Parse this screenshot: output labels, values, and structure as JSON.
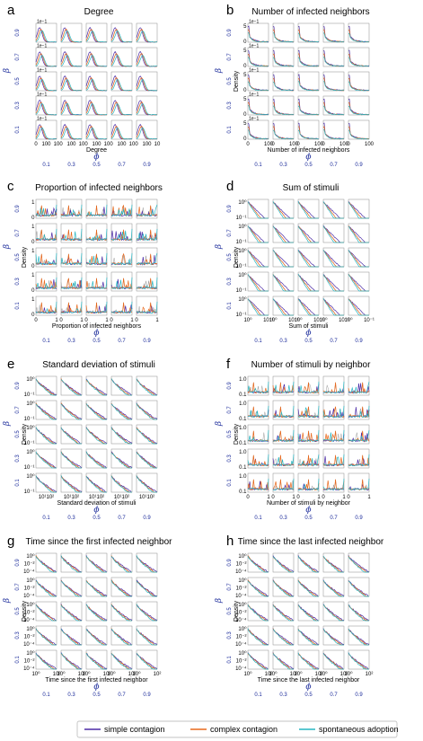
{
  "colors": {
    "simple": "#4b2aa6",
    "complex": "#e8681c",
    "spontaneous": "#27b5c2",
    "grey": "#9a9a9a",
    "param": "#1a2a9a"
  },
  "symbols": {
    "beta": "β",
    "phi": "ϕ"
  },
  "row_params": [
    "0.9",
    "0.7",
    "0.5",
    "0.3",
    "0.1"
  ],
  "col_params": [
    "0.1",
    "0.3",
    "0.5",
    "0.7",
    "0.9"
  ],
  "legend": {
    "items": [
      {
        "label": "simple contagion",
        "color": "#4b2aa6"
      },
      {
        "label": "complex contagion",
        "color": "#e8681c"
      },
      {
        "label": "spontaneous adoption",
        "color": "#27b5c2"
      }
    ]
  },
  "chart_data": [
    {
      "letter": "a",
      "title": "Degree",
      "type": "line",
      "shape": "hump",
      "xlabel": "Degree",
      "ylabel": "",
      "xticks": [
        "0",
        "100",
        "10"
      ],
      "yticks": [],
      "sci": "1e−1"
    },
    {
      "letter": "b",
      "title": "Number of infected neighbors",
      "type": "line",
      "shape": "spike",
      "xlabel": "Number of infected neighbors",
      "ylabel": "Density",
      "xticks": [
        "0",
        "100"
      ],
      "yticks": [
        "5",
        "0"
      ],
      "sci": "1e−1"
    },
    {
      "letter": "c",
      "title": "Proportion of infected neighbors",
      "type": "line",
      "shape": "noisy",
      "xlabel": "Proportion of infected neighbors",
      "ylabel": "Density",
      "xticks": [
        "0",
        "1"
      ],
      "yticks": [
        "1",
        "0"
      ],
      "sci": ""
    },
    {
      "letter": "d",
      "title": "Sum of stimuli",
      "type": "line",
      "shape": "logdecay",
      "xlabel": "Sum of stimuli",
      "ylabel": "Density",
      "xticks": [
        "10⁰",
        "10⁻¹"
      ],
      "yticks": [
        "10⁰",
        "10⁻¹"
      ],
      "sci": ""
    },
    {
      "letter": "e",
      "title": "Standard deviation of stimuli",
      "type": "line",
      "shape": "stair",
      "xlabel": "Standard deviation of stimuli",
      "ylabel": "Density",
      "xticks": [
        "10¹10²"
      ],
      "yticks": [
        "10⁰",
        "10⁻¹"
      ],
      "sci": ""
    },
    {
      "letter": "f",
      "title": "Number of stimuli by neighbor",
      "type": "line",
      "shape": "noisy",
      "xlabel": "Number of stimuli by neighbor",
      "ylabel": "Density",
      "xticks": [
        "0",
        "1"
      ],
      "yticks": [
        "1.0",
        "0.1"
      ],
      "sci": ""
    },
    {
      "letter": "g",
      "title": "Time since the first infected neighbor",
      "type": "line",
      "shape": "stair",
      "xlabel": "Time since the first infected neighbor",
      "ylabel": "Density",
      "xticks": [
        "10⁰",
        "10²"
      ],
      "yticks": [
        "10⁰",
        "10⁻²",
        "10⁻⁴"
      ],
      "sci": ""
    },
    {
      "letter": "h",
      "title": "Time since the last infected neighbor",
      "type": "line",
      "shape": "stair",
      "xlabel": "Time since the last infected neighbor",
      "ylabel": "Density",
      "xticks": [
        "10⁰",
        "10²"
      ],
      "yticks": [
        "10⁰",
        "10⁻²",
        "10⁻⁴"
      ],
      "sci": ""
    }
  ]
}
